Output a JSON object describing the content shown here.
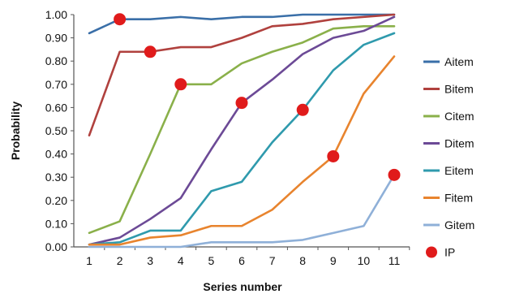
{
  "chart_data": {
    "type": "line",
    "title": "",
    "xlabel": "Series number",
    "ylabel": "Probability",
    "categories": [
      "1",
      "2",
      "3",
      "4",
      "5",
      "6",
      "7",
      "8",
      "9",
      "10",
      "11"
    ],
    "x": [
      1,
      2,
      3,
      4,
      5,
      6,
      7,
      8,
      9,
      10,
      11
    ],
    "ylim": [
      0,
      1
    ],
    "y_ticks": [
      "0.00",
      "0.10",
      "0.20",
      "0.30",
      "0.40",
      "0.50",
      "0.60",
      "0.70",
      "0.80",
      "0.90",
      "1.00"
    ],
    "grid": false,
    "legend_position": "right",
    "series": [
      {
        "name": "Aitem",
        "color": "#3a6fa8",
        "values": [
          0.92,
          0.98,
          0.98,
          0.99,
          0.98,
          0.99,
          0.99,
          1.0,
          1.0,
          1.0,
          1.0
        ]
      },
      {
        "name": "Bitem",
        "color": "#b0413e",
        "values": [
          0.48,
          0.84,
          0.84,
          0.86,
          0.86,
          0.9,
          0.95,
          0.96,
          0.98,
          0.99,
          1.0
        ]
      },
      {
        "name": "Citem",
        "color": "#8ab04a",
        "values": [
          0.06,
          0.11,
          0.4,
          0.7,
          0.7,
          0.79,
          0.84,
          0.88,
          0.94,
          0.95,
          0.95
        ]
      },
      {
        "name": "Ditem",
        "color": "#6c4a96",
        "values": [
          0.01,
          0.04,
          0.12,
          0.21,
          0.42,
          0.62,
          0.72,
          0.83,
          0.9,
          0.93,
          0.99
        ]
      },
      {
        "name": "Eitem",
        "color": "#2f9aad",
        "values": [
          0.01,
          0.02,
          0.07,
          0.07,
          0.24,
          0.28,
          0.45,
          0.59,
          0.76,
          0.87,
          0.92
        ]
      },
      {
        "name": "Fitem",
        "color": "#e8842e",
        "values": [
          0.01,
          0.01,
          0.04,
          0.05,
          0.09,
          0.09,
          0.16,
          0.28,
          0.39,
          0.66,
          0.82
        ]
      },
      {
        "name": "Gitem",
        "color": "#8fb0d8",
        "values": [
          0.0,
          0.0,
          0.0,
          0.0,
          0.02,
          0.02,
          0.02,
          0.03,
          0.06,
          0.09,
          0.31
        ]
      }
    ],
    "ip": {
      "name": "IP",
      "color": "#e01b1b",
      "points": [
        {
          "x": 2,
          "y": 0.98
        },
        {
          "x": 3,
          "y": 0.84
        },
        {
          "x": 4,
          "y": 0.7
        },
        {
          "x": 6,
          "y": 0.62
        },
        {
          "x": 8,
          "y": 0.59
        },
        {
          "x": 9,
          "y": 0.39
        },
        {
          "x": 11,
          "y": 0.31
        }
      ]
    }
  }
}
